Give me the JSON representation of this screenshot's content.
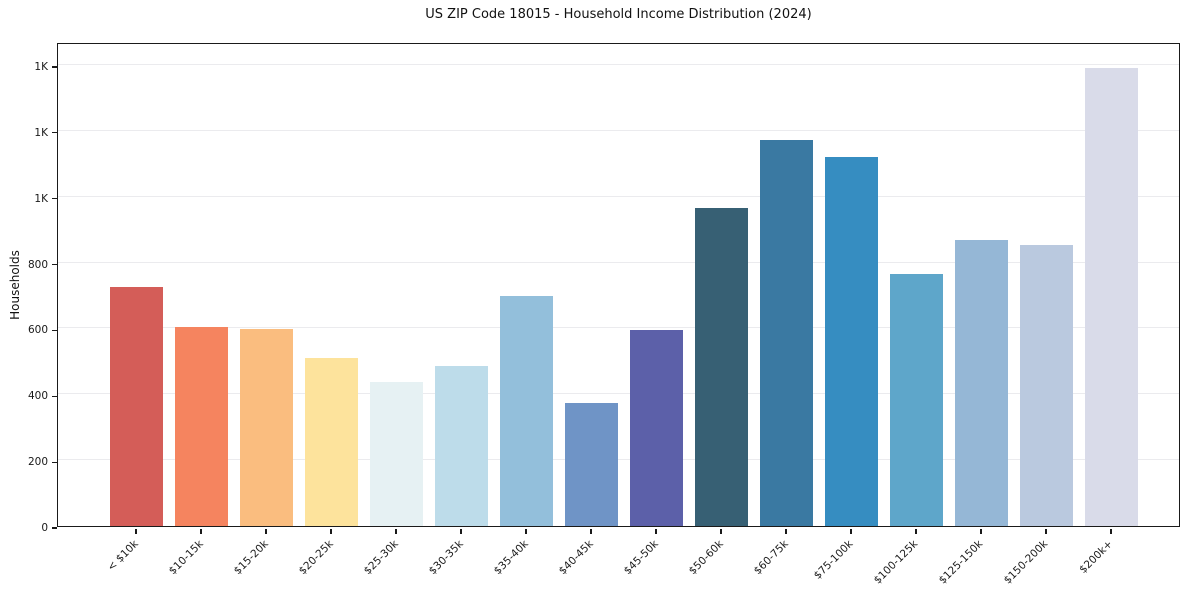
{
  "figure": {
    "title": "US ZIP Code 18015 - Household Income Distribution (2024)"
  },
  "chart_data": {
    "type": "bar",
    "title": "US ZIP Code 18015 - Household Income Distribution (2024)",
    "xlabel": "",
    "ylabel": "Households",
    "categories": [
      "< $10k",
      "$10-15k",
      "$15-20k",
      "$20-25k",
      "$25-30k",
      "$30-35k",
      "$35-40k",
      "$40-45k",
      "$45-50k",
      "$50-60k",
      "$60-75k",
      "$75-100k",
      "$100-125k",
      "$125-150k",
      "$150-200k",
      "$200k+"
    ],
    "values": [
      725,
      606,
      598,
      510,
      437,
      485,
      700,
      374,
      596,
      966,
      1174,
      1122,
      765,
      868,
      854,
      1392
    ],
    "bar_colors": [
      "#d45d58",
      "#f5845f",
      "#fabd7f",
      "#fde39c",
      "#e6f1f3",
      "#bddcea",
      "#93bfdb",
      "#6f94c6",
      "#5c60a9",
      "#376074",
      "#3a79a2",
      "#368dc1",
      "#5ea6ca",
      "#95b7d6",
      "#bac9df",
      "#d9dbe9"
    ],
    "ylim": [
      0,
      1470
    ],
    "yticks": [
      {
        "value": 0,
        "label": "0"
      },
      {
        "value": 200,
        "label": "200"
      },
      {
        "value": 400,
        "label": "400"
      },
      {
        "value": 600,
        "label": "600"
      },
      {
        "value": 800,
        "label": "800"
      },
      {
        "value": 1000,
        "label": "1K"
      },
      {
        "value": 1200,
        "label": "1K"
      },
      {
        "value": 1400,
        "label": "1K"
      }
    ],
    "grid": "horizontal-only",
    "legend": "none"
  }
}
